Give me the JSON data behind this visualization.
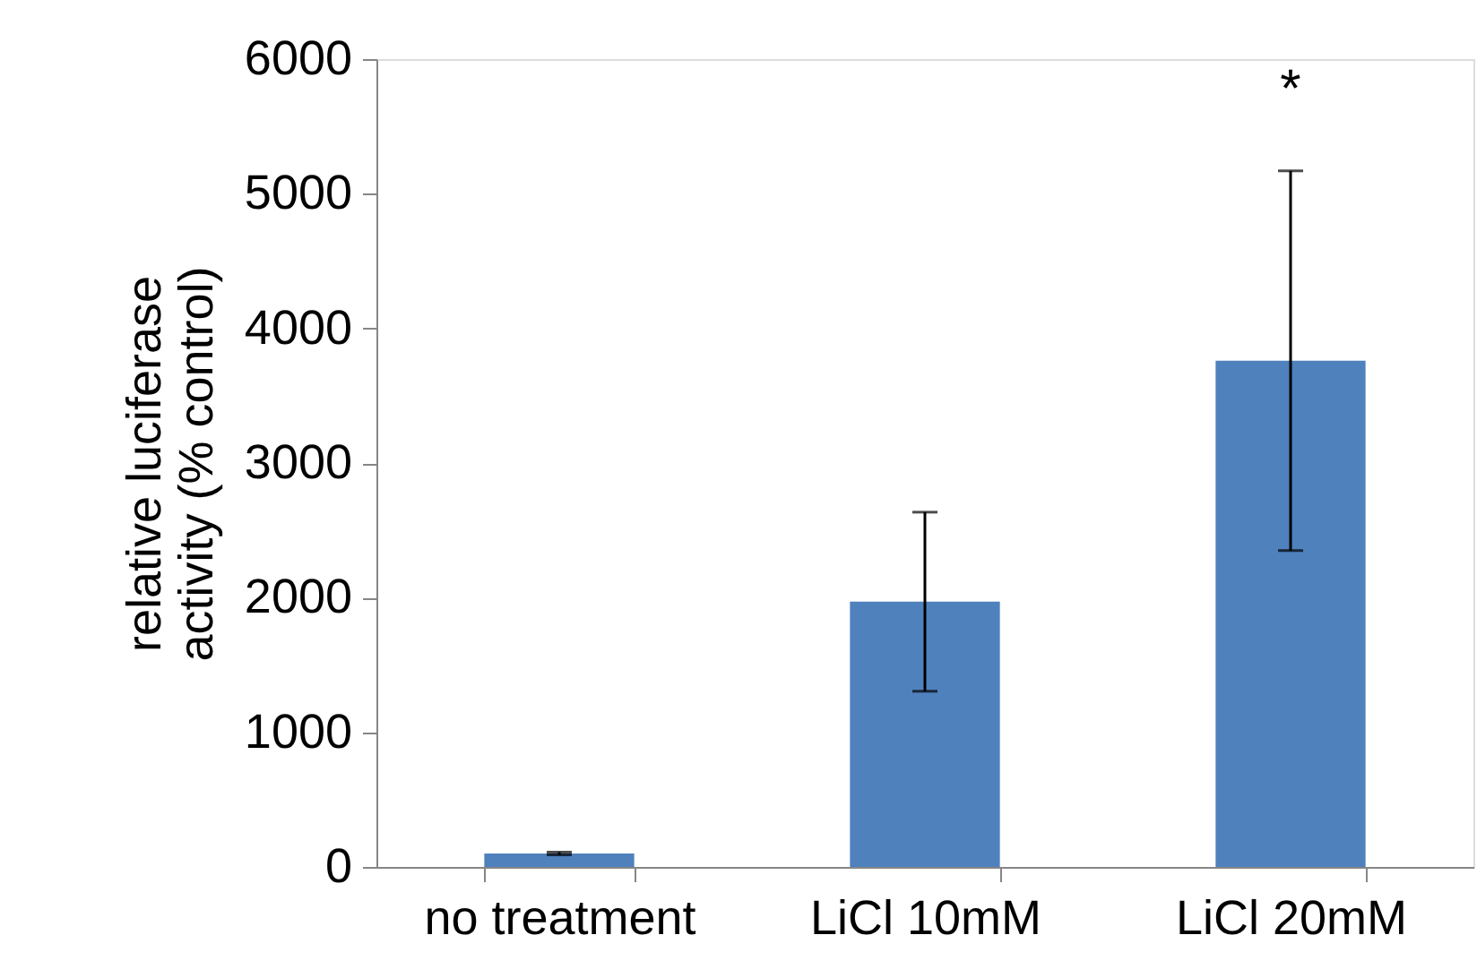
{
  "chart_data": {
    "type": "bar",
    "ylabel": "relative luciferase activity (% control)",
    "categories": [
      "no treatment",
      "LiCl 10mM",
      "LiCl 20mM"
    ],
    "values": [
      100,
      1970,
      3760
    ],
    "errors": [
      10,
      665,
      1410
    ],
    "color": "#4f81bd",
    "ylim": [
      0,
      6000
    ],
    "yticks": [
      0,
      1000,
      2000,
      3000,
      4000,
      5000,
      6000
    ],
    "grid": false,
    "annotations": [
      "*"
    ]
  }
}
